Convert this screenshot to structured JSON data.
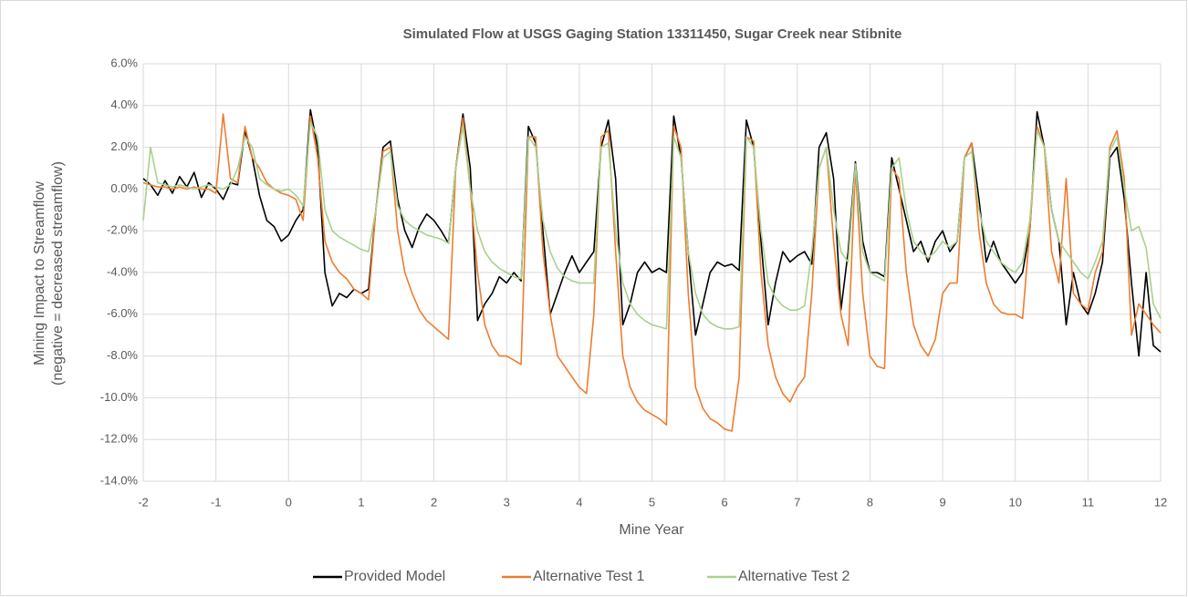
{
  "chart_data": {
    "type": "line",
    "title": "Simulated Flow at USGS Gaging Station 13311450, Sugar Creek near Stibnite",
    "xlabel": "Mine Year",
    "ylabel": [
      "Mining Impact to Streamflow",
      "(negative = decreased streamflow)"
    ],
    "xlim": [
      -2,
      12
    ],
    "xticks": [
      -2,
      -1,
      0,
      1,
      2,
      3,
      4,
      5,
      6,
      7,
      8,
      9,
      10,
      11,
      12
    ],
    "ylim": [
      -14,
      6
    ],
    "yticks": [
      {
        "value": 6,
        "label": "6.0%"
      },
      {
        "value": 4,
        "label": "4.0%"
      },
      {
        "value": 2,
        "label": "2.0%"
      },
      {
        "value": 0,
        "label": "0.0%"
      },
      {
        "value": -2,
        "label": "-2.0%"
      },
      {
        "value": -4,
        "label": "-4.0%"
      },
      {
        "value": -6,
        "label": "-6.0%"
      },
      {
        "value": -8,
        "label": "-8.0%"
      },
      {
        "value": -10,
        "label": "-10.0%"
      },
      {
        "value": -12,
        "label": "-12.0%"
      },
      {
        "value": -14,
        "label": "-14.0%"
      }
    ],
    "grid": true,
    "legend": "bottom",
    "x": [
      -2,
      -1.9,
      -1.8,
      -1.7,
      -1.6,
      -1.5,
      -1.4,
      -1.3,
      -1.2,
      -1.1,
      -1,
      -0.9,
      -0.8,
      -0.7,
      -0.6,
      -0.5,
      -0.4,
      -0.3,
      -0.2,
      -0.1,
      0,
      0.1,
      0.2,
      0.3,
      0.4,
      0.5,
      0.6,
      0.7,
      0.8,
      0.9,
      1,
      1.1,
      1.2,
      1.3,
      1.4,
      1.5,
      1.6,
      1.7,
      1.8,
      1.9,
      2,
      2.1,
      2.2,
      2.3,
      2.4,
      2.5,
      2.6,
      2.7,
      2.8,
      2.9,
      3,
      3.1,
      3.2,
      3.3,
      3.4,
      3.5,
      3.6,
      3.7,
      3.8,
      3.9,
      4,
      4.1,
      4.2,
      4.3,
      4.4,
      4.5,
      4.6,
      4.7,
      4.8,
      4.9,
      5,
      5.1,
      5.2,
      5.3,
      5.4,
      5.5,
      5.6,
      5.7,
      5.8,
      5.9,
      6,
      6.1,
      6.2,
      6.3,
      6.4,
      6.5,
      6.6,
      6.7,
      6.8,
      6.9,
      7,
      7.1,
      7.2,
      7.3,
      7.4,
      7.5,
      7.6,
      7.7,
      7.8,
      7.9,
      8,
      8.1,
      8.2,
      8.3,
      8.4,
      8.5,
      8.6,
      8.7,
      8.8,
      8.9,
      9,
      9.1,
      9.2,
      9.3,
      9.4,
      9.5,
      9.6,
      9.7,
      9.8,
      9.9,
      10,
      10.1,
      10.2,
      10.3,
      10.4,
      10.5,
      10.6,
      10.7,
      10.8,
      10.9,
      11,
      11.1,
      11.2,
      11.3,
      11.4,
      11.5,
      11.6,
      11.7,
      11.8,
      11.9,
      12
    ],
    "series": [
      {
        "name": "Provided Model",
        "color": "#000000",
        "values": [
          0.5,
          0.2,
          -0.3,
          0.4,
          -0.2,
          0.6,
          0.1,
          0.8,
          -0.4,
          0.3,
          0.0,
          -0.5,
          0.3,
          0.2,
          2.8,
          1.5,
          -0.3,
          -1.5,
          -1.8,
          -2.5,
          -2.2,
          -1.5,
          -1.0,
          3.8,
          2.0,
          -4.0,
          -5.6,
          -5.0,
          -5.2,
          -4.8,
          -5.0,
          -4.8,
          -1.0,
          2.0,
          2.3,
          -0.5,
          -2.0,
          -2.8,
          -1.8,
          -1.2,
          -1.5,
          -2.0,
          -2.6,
          1.0,
          3.6,
          1.0,
          -6.3,
          -5.5,
          -5.0,
          -4.2,
          -4.5,
          -4.0,
          -4.4,
          3.0,
          2.2,
          -2.0,
          -6.0,
          -5.0,
          -4.0,
          -3.2,
          -4.0,
          -3.5,
          -3.0,
          2.0,
          3.3,
          0.5,
          -6.5,
          -5.5,
          -4.0,
          -3.5,
          -4.0,
          -3.8,
          -4.0,
          3.5,
          1.5,
          -3.0,
          -7.0,
          -5.5,
          -4.0,
          -3.5,
          -3.7,
          -3.6,
          -3.9,
          3.3,
          2.0,
          -2.5,
          -6.5,
          -4.5,
          -3.0,
          -3.5,
          -3.2,
          -3.0,
          -3.6,
          2.0,
          2.7,
          0.5,
          -5.8,
          -3.0,
          1.3,
          -2.5,
          -4.0,
          -4.0,
          -4.2,
          1.5,
          0.0,
          -1.5,
          -3.0,
          -2.5,
          -3.5,
          -2.5,
          -2.0,
          -3.0,
          -2.5,
          1.5,
          2.2,
          -0.5,
          -3.5,
          -2.5,
          -3.5,
          -4.0,
          -4.5,
          -4.0,
          -2.0,
          3.7,
          2.0,
          -1.0,
          -2.5,
          -6.5,
          -4.0,
          -5.5,
          -6.0,
          -5.0,
          -3.5,
          1.5,
          2.0,
          -0.5,
          -4.5,
          -8.0,
          -4.0,
          -7.5,
          -7.8
        ]
      },
      {
        "name": "Alternative Test 1",
        "color": "#ed7d31",
        "values": [
          0.3,
          0.2,
          0.1,
          0.1,
          0.0,
          0.1,
          0.0,
          0.1,
          0.0,
          0.0,
          -0.2,
          3.6,
          0.5,
          0.3,
          3.0,
          1.5,
          1.0,
          0.3,
          0.0,
          -0.2,
          -0.3,
          -0.5,
          -1.5,
          3.5,
          1.5,
          -2.5,
          -3.5,
          -4.0,
          -4.3,
          -4.8,
          -5.0,
          -5.3,
          -1.0,
          1.8,
          2.0,
          -2.0,
          -4.0,
          -5.0,
          -5.8,
          -6.3,
          -6.6,
          -6.9,
          -7.2,
          1.0,
          3.4,
          0.0,
          -4.0,
          -6.5,
          -7.5,
          -8.0,
          -8.0,
          -8.2,
          -8.4,
          2.5,
          2.5,
          -3.0,
          -6.0,
          -8.0,
          -8.5,
          -9.0,
          -9.5,
          -9.8,
          -6.0,
          2.5,
          2.8,
          -3.0,
          -8.0,
          -9.5,
          -10.2,
          -10.6,
          -10.8,
          -11.0,
          -11.3,
          3.0,
          2.0,
          -5.0,
          -9.5,
          -10.5,
          -11.0,
          -11.2,
          -11.5,
          -11.6,
          -9.0,
          2.5,
          2.3,
          -4.0,
          -7.5,
          -9.0,
          -9.8,
          -10.2,
          -9.5,
          -9.0,
          -5.0,
          1.0,
          2.0,
          -2.5,
          -6.0,
          -7.5,
          1.0,
          -5.0,
          -8.0,
          -8.5,
          -8.6,
          1.0,
          0.5,
          -4.0,
          -6.5,
          -7.5,
          -8.0,
          -7.2,
          -5.0,
          -4.5,
          -4.5,
          1.5,
          2.2,
          -2.0,
          -4.5,
          -5.5,
          -5.9,
          -6.0,
          -6.0,
          -6.2,
          -2.0,
          3.0,
          2.0,
          -3.0,
          -4.5,
          0.5,
          -5.0,
          -5.5,
          -5.8,
          -4.0,
          -3.0,
          2.0,
          2.8,
          0.5,
          -7.0,
          -5.5,
          -6.0,
          -6.5,
          -6.9
        ]
      },
      {
        "name": "Alternative Test 2",
        "color": "#a9d18e",
        "values": [
          -1.5,
          2.0,
          0.3,
          0.2,
          0.1,
          0.2,
          0.1,
          0.0,
          0.1,
          0.2,
          0.1,
          0.0,
          0.2,
          1.0,
          2.5,
          2.0,
          0.5,
          0.2,
          0.0,
          -0.1,
          0.0,
          -0.3,
          -0.8,
          3.2,
          2.5,
          -1.0,
          -2.0,
          -2.3,
          -2.5,
          -2.7,
          -2.9,
          -3.0,
          -1.0,
          1.5,
          1.8,
          -0.8,
          -1.5,
          -1.8,
          -2.0,
          -2.2,
          -2.3,
          -2.4,
          -2.6,
          1.0,
          3.0,
          0.0,
          -2.0,
          -3.0,
          -3.5,
          -3.8,
          -4.0,
          -4.2,
          -4.3,
          2.5,
          2.0,
          -1.5,
          -3.0,
          -3.8,
          -4.2,
          -4.4,
          -4.5,
          -4.5,
          -4.5,
          2.0,
          2.2,
          -2.0,
          -4.5,
          -5.5,
          -6.0,
          -6.3,
          -6.5,
          -6.6,
          -6.7,
          2.5,
          1.5,
          -3.0,
          -5.0,
          -6.0,
          -6.4,
          -6.6,
          -6.7,
          -6.7,
          -6.6,
          2.5,
          2.0,
          -2.0,
          -4.5,
          -5.2,
          -5.6,
          -5.8,
          -5.8,
          -5.6,
          -3.0,
          1.0,
          2.0,
          -1.0,
          -3.0,
          -3.5,
          1.2,
          -3.0,
          -4.0,
          -4.2,
          -4.4,
          1.0,
          1.5,
          -1.0,
          -2.5,
          -3.0,
          -3.3,
          -3.0,
          -2.5,
          -2.8,
          -2.5,
          1.5,
          1.8,
          -1.0,
          -2.5,
          -3.0,
          -3.5,
          -3.8,
          -4.0,
          -3.5,
          -1.5,
          2.8,
          2.0,
          -1.0,
          -2.5,
          -3.0,
          -3.5,
          -4.0,
          -4.3,
          -3.5,
          -2.5,
          1.8,
          2.5,
          0.0,
          -2.0,
          -1.8,
          -2.8,
          -5.5,
          -6.2
        ]
      }
    ]
  }
}
